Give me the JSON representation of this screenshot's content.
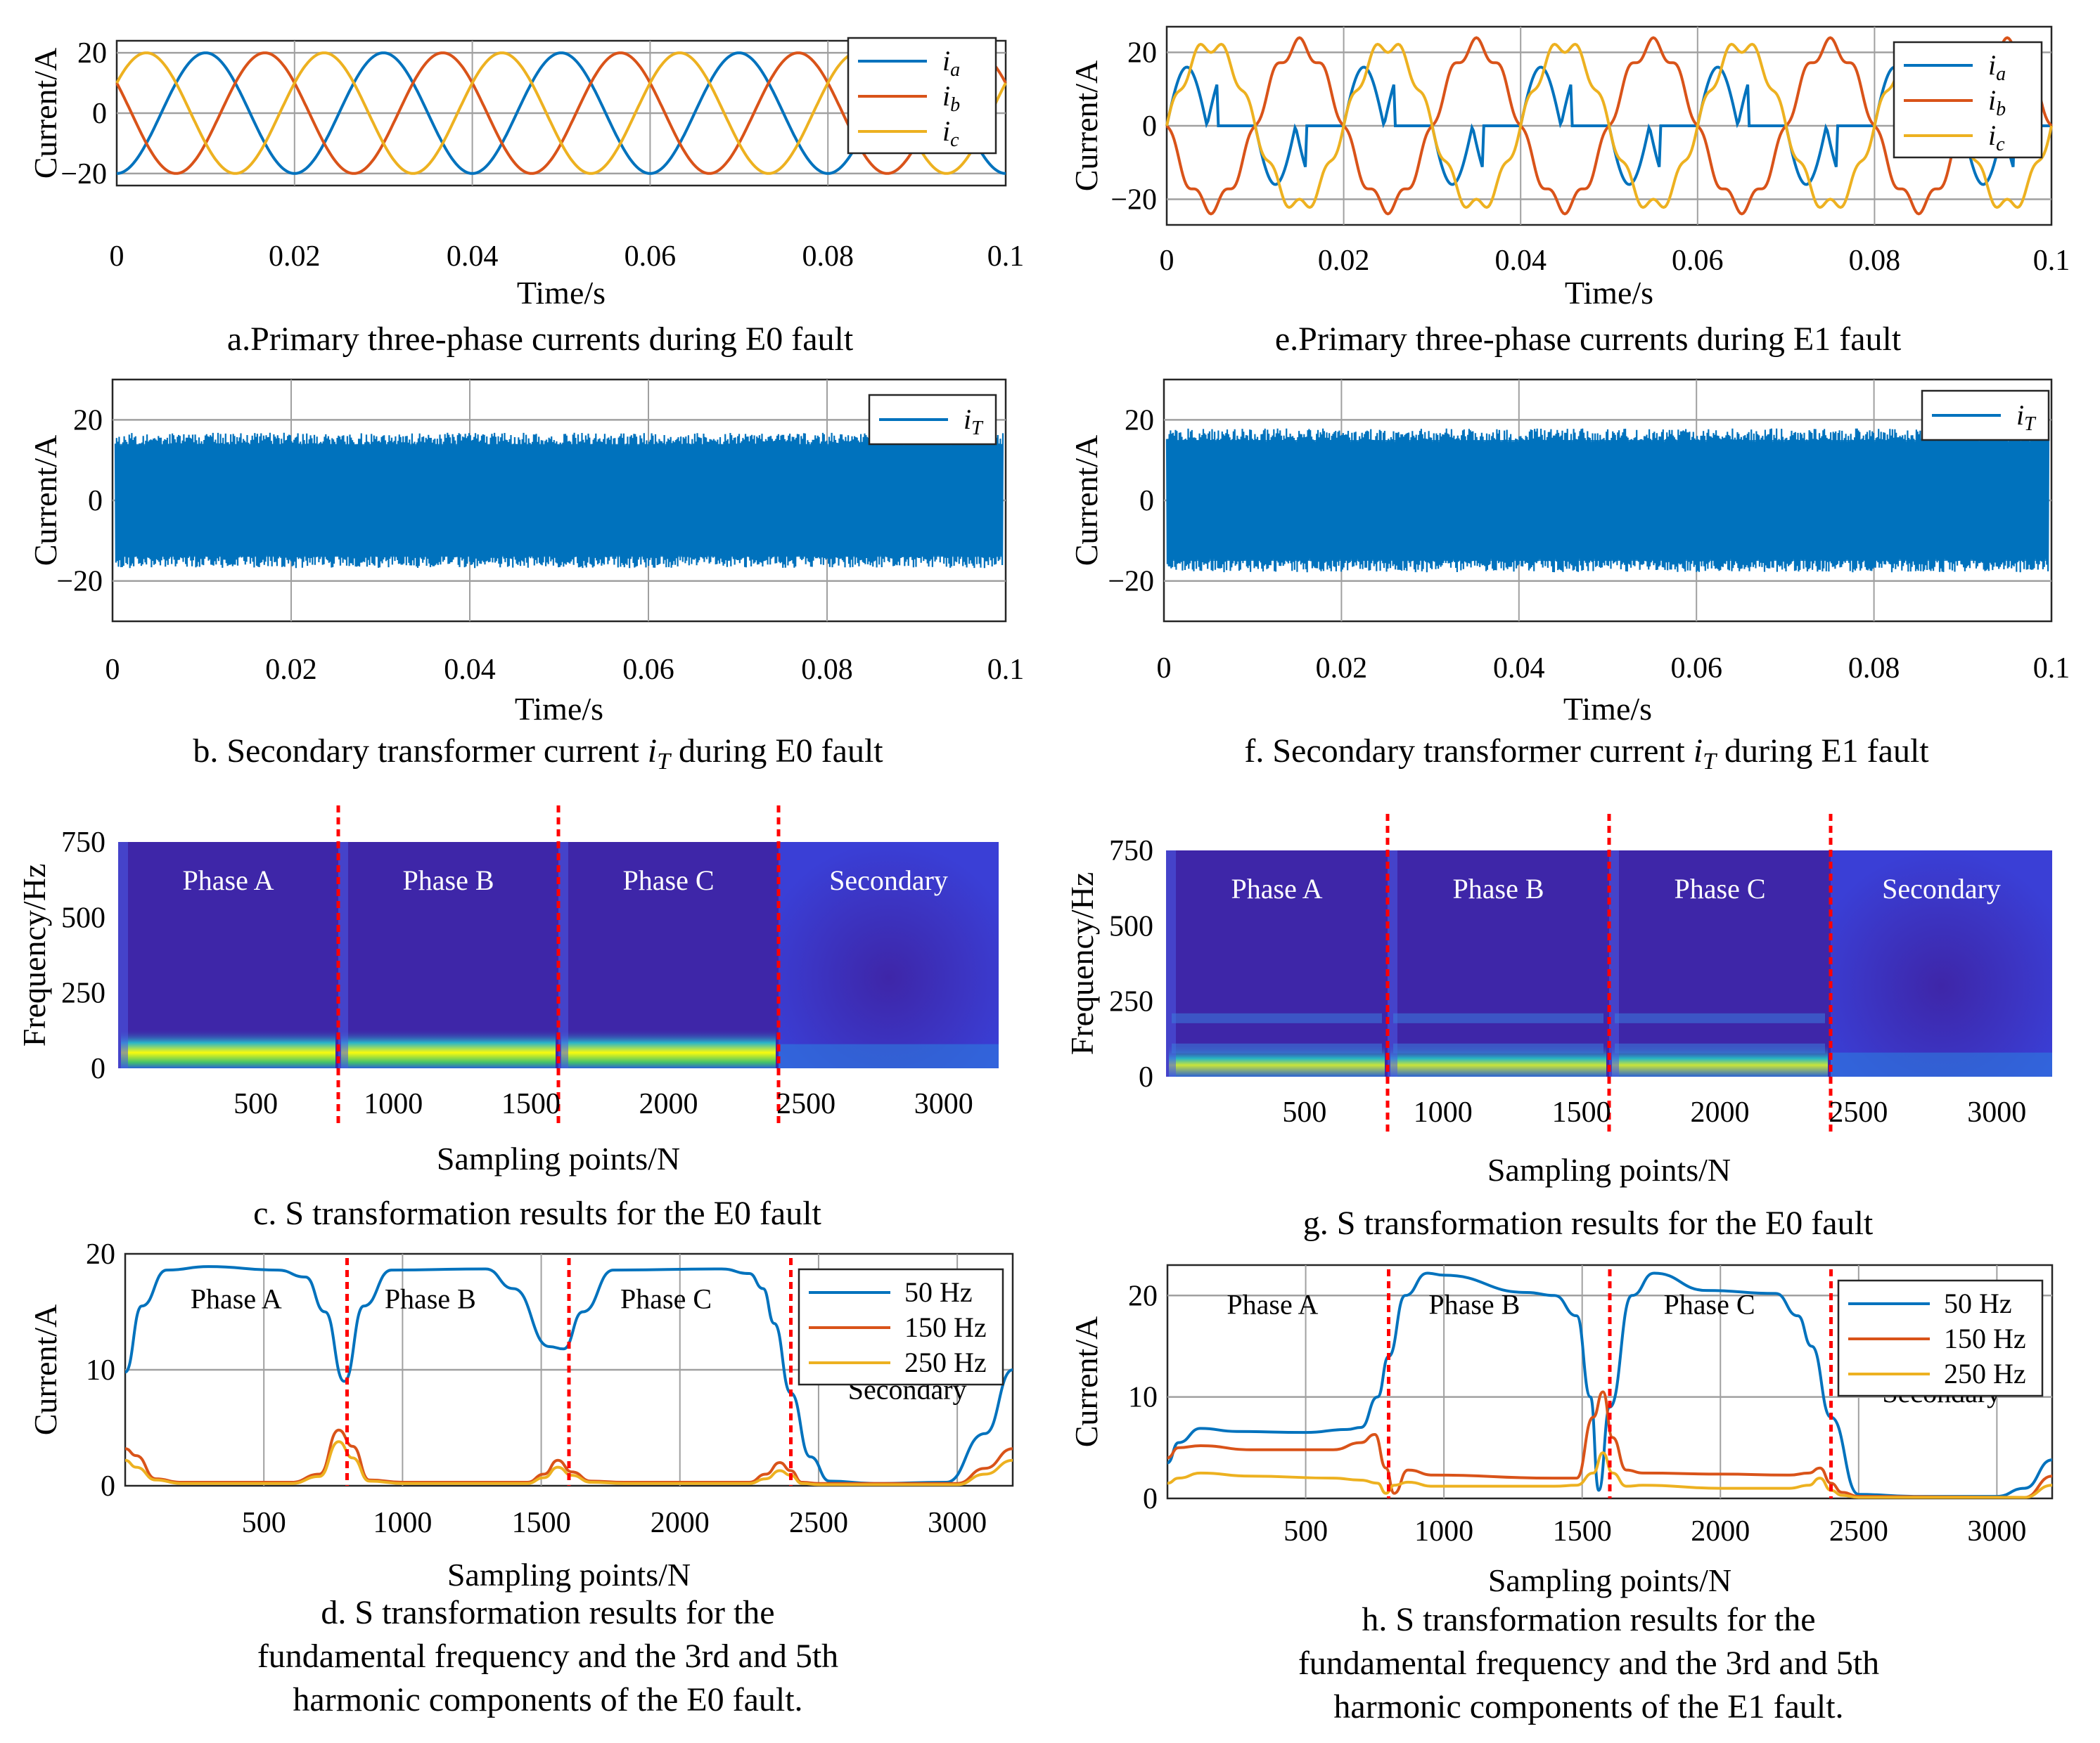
{
  "colors": {
    "ia": "#0072BD",
    "ib": "#D95319",
    "ic": "#EDB120",
    "grid": "#a0a0a0",
    "marker": "#ff0000",
    "spec_bg": "#3e26a8",
    "spec_hot": "#f9fb0e"
  },
  "chart_data": [
    {
      "id": "a",
      "type": "line",
      "title": "a.Primary three-phase currents during E0 fault",
      "xlabel": "Time/s",
      "ylabel": "Current/A",
      "xlim": [
        0,
        0.1
      ],
      "ylim": [
        -24,
        24
      ],
      "xticks": [
        0,
        0.02,
        0.04,
        0.06,
        0.08,
        0.1
      ],
      "xtick_labels": [
        "0",
        "0.02",
        "0.04",
        "0.06",
        "0.08",
        "0.1"
      ],
      "yticks": [
        -20,
        0,
        20
      ],
      "ytick_labels": [
        "−20",
        "0",
        "20"
      ],
      "grid": true,
      "legend": "top-right",
      "series": [
        {
          "name": "i",
          "sub": "a",
          "color": "ia",
          "amplitude": 20,
          "freq_hz": 50,
          "phase_deg": -90,
          "shape": "sine"
        },
        {
          "name": "i",
          "sub": "b",
          "color": "ib",
          "amplitude": 20,
          "freq_hz": 50,
          "phase_deg": 150,
          "shape": "sine"
        },
        {
          "name": "i",
          "sub": "c",
          "color": "ic",
          "amplitude": 20,
          "freq_hz": 50,
          "phase_deg": 30,
          "shape": "sine"
        }
      ]
    },
    {
      "id": "e",
      "type": "line",
      "title": "e.Primary three-phase currents during E1 fault",
      "xlabel": "Time/s",
      "ylabel": "Current/A",
      "xlim": [
        0,
        0.1
      ],
      "ylim": [
        -27,
        27
      ],
      "xticks": [
        0,
        0.02,
        0.04,
        0.06,
        0.08,
        0.1
      ],
      "xtick_labels": [
        "0",
        "0.02",
        "0.04",
        "0.06",
        "0.08",
        "0.1"
      ],
      "yticks": [
        -20,
        0,
        20
      ],
      "ytick_labels": [
        "−20",
        "0",
        "20"
      ],
      "grid": true,
      "legend": "top-right",
      "series": [
        {
          "name": "i",
          "sub": "a",
          "color": "ia",
          "amplitude": 16,
          "freq_hz": 50,
          "phase_deg": 0,
          "shape": "clipped"
        },
        {
          "name": "i",
          "sub": "b",
          "color": "ib",
          "amplitude": 22,
          "freq_hz": 50,
          "phase_deg": 180,
          "shape": "sine"
        },
        {
          "name": "i",
          "sub": "c",
          "color": "ic",
          "amplitude": 22,
          "freq_hz": 50,
          "phase_deg": 0,
          "shape": "sine"
        }
      ]
    },
    {
      "id": "b",
      "type": "line",
      "title": "b. Secondary transformer current",
      "title_italic": "i",
      "title_sub": "T",
      "title_suffix": " during E0 fault",
      "xlabel": "Time/s",
      "ylabel": "Current/A",
      "xlim": [
        0,
        0.1
      ],
      "ylim": [
        -30,
        30
      ],
      "xticks": [
        0,
        0.02,
        0.04,
        0.06,
        0.08,
        0.1
      ],
      "xtick_labels": [
        "0",
        "0.02",
        "0.04",
        "0.06",
        "0.08",
        "0.1"
      ],
      "yticks": [
        -20,
        0,
        20
      ],
      "ytick_labels": [
        "−20",
        "0",
        "20"
      ],
      "grid": true,
      "legend": "top-right",
      "series": [
        {
          "name": "i",
          "sub": "T",
          "color": "ia",
          "amplitude": 16,
          "shape": "noise",
          "envelope": [
            -17,
            17
          ]
        }
      ]
    },
    {
      "id": "f",
      "type": "line",
      "title": "f. Secondary transformer current",
      "title_italic": "i",
      "title_sub": "T",
      "title_suffix": " during E1 fault",
      "xlabel": "Time/s",
      "ylabel": "Current/A",
      "xlim": [
        0,
        0.1
      ],
      "ylim": [
        -30,
        30
      ],
      "xticks": [
        0,
        0.02,
        0.04,
        0.06,
        0.08,
        0.1
      ],
      "xtick_labels": [
        "0",
        "0.02",
        "0.04",
        "0.06",
        "0.08",
        "0.1"
      ],
      "yticks": [
        -20,
        0,
        20
      ],
      "ytick_labels": [
        "−20",
        "0",
        "20"
      ],
      "grid": true,
      "legend": "top-right",
      "series": [
        {
          "name": "i",
          "sub": "T",
          "color": "ia",
          "amplitude": 17,
          "shape": "noise",
          "envelope": [
            -18,
            18
          ]
        }
      ]
    },
    {
      "id": "c",
      "type": "heatmap",
      "title": "c. S transformation results for the E0 fault",
      "xlabel": "Sampling points/N",
      "ylabel": "Frequency/Hz",
      "xlim": [
        0,
        3200
      ],
      "ylim": [
        0,
        750
      ],
      "xticks": [
        500,
        1000,
        1500,
        2000,
        2500,
        3000
      ],
      "xtick_labels": [
        "500",
        "1000",
        "1500",
        "2000",
        "2500",
        "3000"
      ],
      "yticks": [
        0,
        250,
        500,
        750
      ],
      "ytick_labels": [
        "0",
        "250",
        "500",
        "750"
      ],
      "dividers": [
        800,
        1600,
        2400
      ],
      "regions": [
        "Phase A",
        "Phase B",
        "Phase C",
        "Secondary"
      ]
    },
    {
      "id": "g",
      "type": "heatmap",
      "title": "g. S transformation results for the E0 fault",
      "xlabel": "Sampling points/N",
      "ylabel": "Frequency/Hz",
      "xlim": [
        0,
        3200
      ],
      "ylim": [
        0,
        750
      ],
      "xticks": [
        500,
        1000,
        1500,
        2000,
        2500,
        3000
      ],
      "xtick_labels": [
        "500",
        "1000",
        "1500",
        "2000",
        "2500",
        "3000"
      ],
      "yticks": [
        0,
        250,
        500,
        750
      ],
      "ytick_labels": [
        "0",
        "250",
        "500",
        "750"
      ],
      "dividers": [
        800,
        1600,
        2400
      ],
      "regions": [
        "Phase A",
        "Phase B",
        "Phase C",
        "Secondary"
      ]
    },
    {
      "id": "d",
      "type": "line",
      "title_lines": [
        "d. S transformation results for the",
        "fundamental frequency and the 3rd and 5th",
        "harmonic components of the E0 fault."
      ],
      "xlabel": "Sampling points/N",
      "ylabel": "Current/A",
      "xlim": [
        0,
        3200
      ],
      "ylim": [
        0,
        20
      ],
      "xticks": [
        500,
        1000,
        1500,
        2000,
        2500,
        3000
      ],
      "xtick_labels": [
        "500",
        "1000",
        "1500",
        "2000",
        "2500",
        "3000"
      ],
      "yticks": [
        0,
        10,
        20
      ],
      "ytick_labels": [
        "0",
        "10",
        "20"
      ],
      "grid": true,
      "legend": "top-right",
      "dividers": [
        800,
        1600,
        2400
      ],
      "regions": [
        "Phase A",
        "Phase B",
        "Phase C",
        "Secondary"
      ],
      "series": [
        {
          "name": "50 Hz",
          "color": "ia",
          "x": [
            0,
            60,
            150,
            300,
            550,
            650,
            720,
            790,
            860,
            960,
            1300,
            1400,
            1530,
            1580,
            1650,
            1760,
            2150,
            2250,
            2300,
            2340,
            2400,
            2470,
            2540,
            2700,
            2960,
            3100,
            3200
          ],
          "y": [
            9.8,
            15.5,
            18.6,
            18.9,
            18.6,
            18,
            15,
            9,
            15.5,
            18.6,
            18.7,
            17,
            12,
            11.8,
            15,
            18.6,
            18.7,
            18.3,
            17,
            14,
            8,
            2.5,
            0.4,
            0.2,
            0.3,
            4.5,
            10
          ]
        },
        {
          "name": "150 Hz",
          "color": "ib",
          "x": [
            0,
            40,
            110,
            200,
            600,
            700,
            770,
            820,
            880,
            1000,
            1450,
            1510,
            1560,
            1610,
            1680,
            1800,
            2250,
            2310,
            2360,
            2400,
            2440,
            2500,
            3000,
            3100,
            3200
          ],
          "y": [
            3.2,
            2.6,
            0.6,
            0.3,
            0.3,
            1,
            4.8,
            3.4,
            0.5,
            0.3,
            0.3,
            1,
            2.2,
            1.2,
            0.4,
            0.3,
            0.3,
            1,
            2,
            1.3,
            0.3,
            0.2,
            0.2,
            1.5,
            3.2
          ]
        },
        {
          "name": "250 Hz",
          "color": "ic",
          "x": [
            0,
            40,
            110,
            200,
            600,
            700,
            770,
            820,
            880,
            1000,
            1450,
            1510,
            1560,
            1610,
            1680,
            1800,
            2250,
            2310,
            2360,
            2400,
            2440,
            2500,
            3000,
            3100,
            3200
          ],
          "y": [
            2.2,
            1.6,
            0.5,
            0.2,
            0.2,
            0.8,
            3.8,
            2.4,
            0.4,
            0.2,
            0.2,
            0.7,
            1.6,
            0.9,
            0.3,
            0.2,
            0.2,
            0.6,
            1.3,
            0.9,
            0.2,
            0.1,
            0.1,
            1,
            2.2
          ]
        }
      ]
    },
    {
      "id": "h",
      "type": "line",
      "title_lines": [
        "h. S transformation results for the",
        "fundamental frequency and the 3rd and 5th",
        "harmonic components of the E1 fault."
      ],
      "xlabel": "Sampling points/N",
      "ylabel": "Current/A",
      "xlim": [
        0,
        3200
      ],
      "ylim": [
        0,
        23
      ],
      "xticks": [
        500,
        1000,
        1500,
        2000,
        2500,
        3000
      ],
      "xtick_labels": [
        "500",
        "1000",
        "1500",
        "2000",
        "2500",
        "3000"
      ],
      "yticks": [
        0,
        10,
        20
      ],
      "ytick_labels": [
        "0",
        "10",
        "20"
      ],
      "grid": true,
      "legend": "top-right",
      "dividers": [
        800,
        1600,
        2400
      ],
      "regions": [
        "Phase A",
        "Phase B",
        "Phase C",
        "Secondary"
      ],
      "series": [
        {
          "name": "50 Hz",
          "color": "ia",
          "x": [
            0,
            40,
            120,
            250,
            500,
            650,
            700,
            760,
            800,
            860,
            940,
            1000,
            1300,
            1400,
            1480,
            1530,
            1560,
            1600,
            1680,
            1760,
            1950,
            2200,
            2280,
            2330,
            2400,
            2500,
            2700,
            3000,
            3100,
            3200
          ],
          "y": [
            3.5,
            5.5,
            6.9,
            6.6,
            6.5,
            6.8,
            7,
            10,
            14,
            20,
            22.2,
            22,
            20.3,
            20,
            18,
            10,
            0.8,
            9,
            20,
            22.2,
            20.5,
            20.2,
            18,
            15,
            8,
            0.4,
            0.2,
            0.2,
            1,
            3.8
          ]
        },
        {
          "name": "150 Hz",
          "color": "ib",
          "x": [
            0,
            40,
            120,
            300,
            600,
            700,
            750,
            790,
            820,
            870,
            960,
            1400,
            1480,
            1540,
            1575,
            1610,
            1660,
            1720,
            2000,
            2250,
            2320,
            2360,
            2400,
            2440,
            2500,
            3100,
            3200
          ],
          "y": [
            4,
            5,
            5.2,
            4.8,
            4.8,
            5.5,
            6.3,
            3,
            0.5,
            2.8,
            2.3,
            2,
            2,
            8,
            10.5,
            6,
            2.8,
            2.5,
            2.4,
            2.3,
            2.5,
            3,
            1.5,
            0.6,
            0.2,
            0.1,
            2.2
          ]
        },
        {
          "name": "250 Hz",
          "color": "ic",
          "x": [
            0,
            40,
            120,
            300,
            600,
            700,
            760,
            790,
            820,
            870,
            960,
            1400,
            1480,
            1540,
            1575,
            1610,
            1660,
            1720,
            2000,
            2250,
            2320,
            2360,
            2400,
            2440,
            2500,
            3100,
            3200
          ],
          "y": [
            1.5,
            2,
            2.5,
            2.2,
            2,
            1.8,
            1.5,
            0.5,
            1.3,
            1.6,
            1.2,
            1.2,
            1.3,
            2.5,
            4.5,
            2.5,
            1.2,
            1.3,
            1,
            1,
            1.3,
            2,
            0.8,
            0.3,
            0.1,
            0.1,
            1.3
          ]
        }
      ]
    }
  ]
}
